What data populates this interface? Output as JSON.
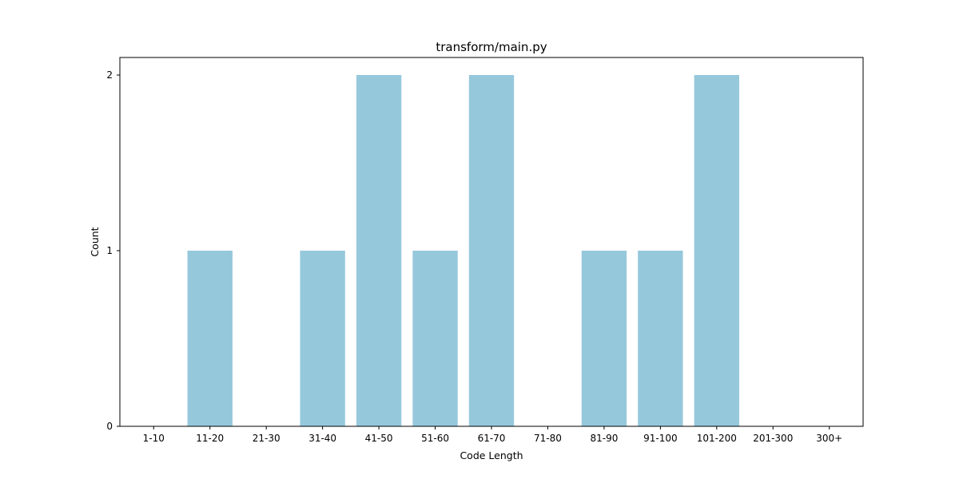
{
  "chart_data": {
    "type": "bar",
    "title": "transform/main.py",
    "xlabel": "Code Length",
    "ylabel": "Count",
    "categories": [
      "1-10",
      "11-20",
      "21-30",
      "31-40",
      "41-50",
      "51-60",
      "61-70",
      "71-80",
      "81-90",
      "91-100",
      "101-200",
      "201-300",
      "300+"
    ],
    "values": [
      0,
      1,
      0,
      1,
      2,
      1,
      2,
      0,
      1,
      1,
      2,
      0,
      0
    ],
    "ylim": [
      0,
      2.1
    ],
    "yticks": [
      0,
      1,
      2
    ],
    "bar_color": "#96c8dc",
    "grid": false,
    "legend": "none"
  }
}
